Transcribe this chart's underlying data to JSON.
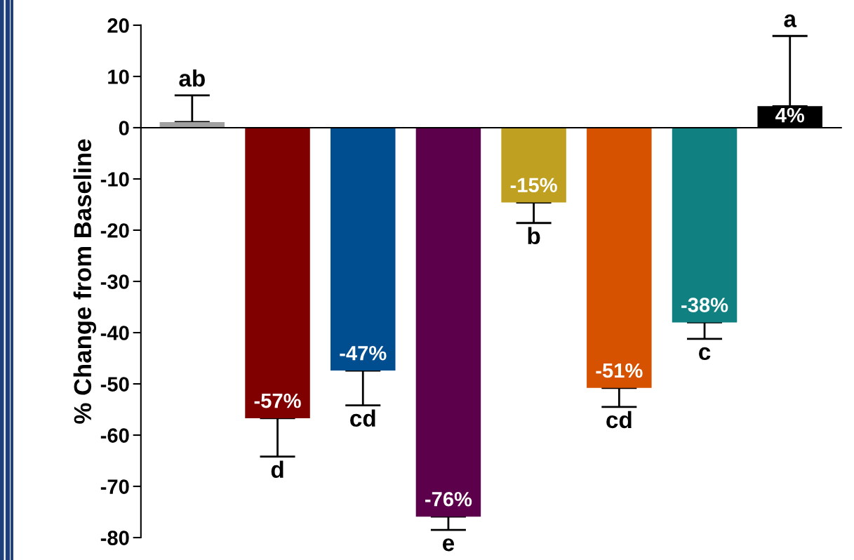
{
  "chart_data": {
    "type": "bar",
    "ylabel": "% Change from Baseline",
    "categories": [
      null,
      null,
      null,
      null,
      null,
      null,
      null,
      null
    ],
    "values": [
      1.1,
      -56.7,
      -47.4,
      -75.9,
      -14.6,
      -50.8,
      -38.0,
      4.2
    ],
    "colors": [
      "#a0a0a0",
      "#800000",
      "#004d8f",
      "#5c004c",
      "#c0a020",
      "#d65200",
      "#108080",
      "#000000"
    ],
    "errors": [
      [
        1.1,
        6.3
      ],
      [
        -64.2,
        -56.7
      ],
      [
        -54.2,
        -47.4
      ],
      [
        -78.5,
        -75.9
      ],
      [
        -18.6,
        -14.6
      ],
      [
        -54.5,
        -50.8
      ],
      [
        -41.2,
        -38.0
      ],
      [
        4.2,
        17.9
      ]
    ],
    "value_labels": [
      null,
      "-57%",
      "-47%",
      "-76%",
      "-15%",
      "-51%",
      "-38%",
      "4%"
    ],
    "annotations": [
      "ab",
      "d",
      "cd",
      "e",
      "b",
      "cd",
      "c",
      "a"
    ],
    "ylim": [
      -80,
      20
    ],
    "yticks": [
      20,
      10,
      0,
      -10,
      -20,
      -30,
      -40,
      -50,
      -60,
      -70,
      -80
    ],
    "legend": false
  }
}
